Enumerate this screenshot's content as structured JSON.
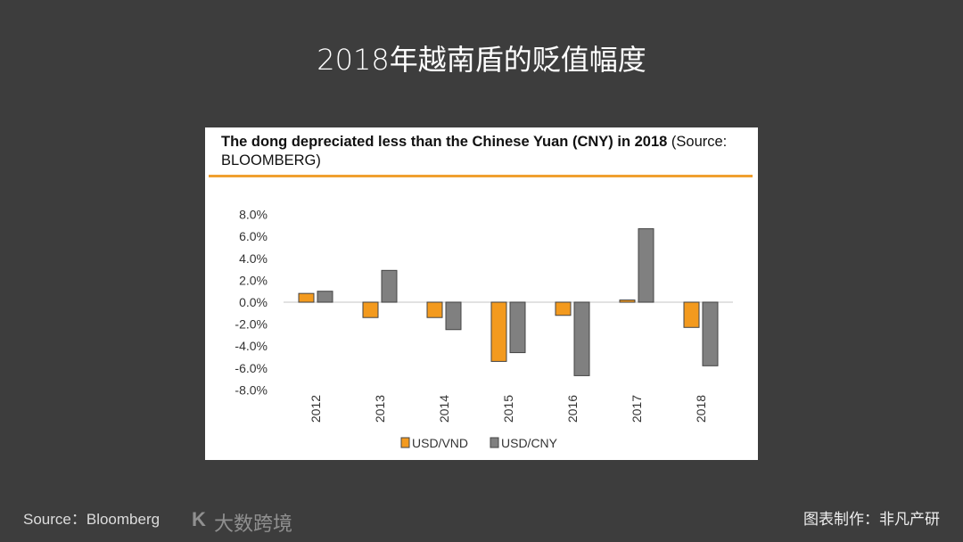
{
  "slide_title": "2018年越南盾的贬值幅度",
  "source": "Source：Bloomberg",
  "credit": "图表制作：非凡产研",
  "watermark": "大数跨境",
  "chart_data": {
    "type": "bar",
    "title_bold": "The dong depreciated less than the Chinese Yuan (CNY) in 2018",
    "title_rest": " (Source: BLOOMBERG)",
    "categories": [
      "2012",
      "2013",
      "2014",
      "2015",
      "2016",
      "2017",
      "2018"
    ],
    "series": [
      {
        "name": "USD/VND",
        "color": "#f39a1e",
        "values": [
          0.8,
          -1.4,
          -1.4,
          -5.4,
          -1.2,
          0.2,
          -2.3
        ]
      },
      {
        "name": "USD/CNY",
        "color": "#808080",
        "values": [
          1.0,
          2.9,
          -2.5,
          -4.6,
          -6.7,
          6.7,
          -5.8
        ]
      }
    ],
    "ylim": [
      -8,
      8
    ],
    "yticks": [
      "8.0%",
      "6.0%",
      "4.0%",
      "2.0%",
      "0.0%",
      "-2.0%",
      "-4.0%",
      "-6.0%",
      "-8.0%"
    ],
    "legend": "bottom",
    "accent": "#f0a030"
  }
}
